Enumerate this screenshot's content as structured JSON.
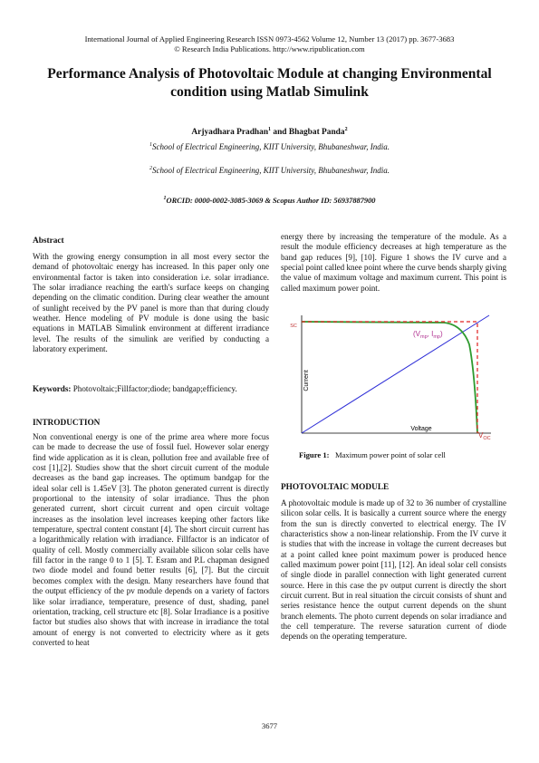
{
  "header": {
    "line1": "International Journal of Applied Engineering Research ISSN 0973-4562 Volume 12, Number 13 (2017) pp. 3677-3683",
    "line2": "© Research India Publications.  http://www.ripublication.com"
  },
  "title": "Performance Analysis of Photovoltaic Module at changing Environmental condition using Matlab Simulink",
  "authors": [
    {
      "name": "Arjyadhara Pradhan",
      "sup": "1"
    },
    {
      "joiner": " and "
    },
    {
      "name": "Bhagbat Panda",
      "sup": "2"
    }
  ],
  "affiliations": [
    {
      "sup": "1",
      "text": "School of Electrical Engineering, KIIT University, Bhubaneshwar, India."
    },
    {
      "sup": "2",
      "text": "School of Electrical Engineering, KIIT University, Bhubaneshwar, India."
    }
  ],
  "orcid": {
    "sup": "1",
    "text": "ORCID: 0000-0002-3085-3069 & Scopus Author ID: 56937887900"
  },
  "abstract": {
    "heading": "Abstract",
    "text": "With the growing energy consumption in all most every sector the demand of photovoltaic energy has increased. In this paper only one environmental factor is taken into consideration i.e. solar irradiance. The solar irradiance reaching the earth's surface keeps on changing depending on the climatic condition. During clear weather the amount of sunlight received by the PV panel is more than that during cloudy weather. Hence modeling of PV module is done using the basic equations in MATLAB Simulink environment at different irradiance level. The results of the simulink are verified by conducting a laboratory experiment."
  },
  "keywords": {
    "label": "Keywords:",
    "text": "Photovoltaic;Fillfactor;diode; bandgap;efficiency."
  },
  "introduction": {
    "heading": "INTRODUCTION",
    "text": "Non conventional energy is one of the prime area where more focus can be made to decrease the use of fossil fuel. However solar energy find wide application as it is clean, pollution free and available free of cost [1],[2]. Studies show that the short circuit current of the module decreases as the band gap increases. The optimum bandgap for the ideal solar cell is 1.45eV [3]. The photon generated current is directly proportional to the intensity of solar irradiance. Thus the phon generated current, short circuit current and open circuit voltage increases as the insolation level increases keeping other factors like temperature, spectral content constant [4]. The short circuit current has a logarithmically relation with irradiance. Fillfactor is an indicator of quality of cell. Mostly commercially available silicon solar cells have fill factor in the range 0 to 1 [5]. T. Esram and P.L chapman designed two diode model and found better results [6], [7]. But the circuit becomes complex with the design. Many researchers have found that the output efficiency of the pv module depends on a variety of factors like solar irradiance, temperature, presence of dust, shading, panel orientation, tracking, cell structure etc [8]. Solar Irradiance is a positive factor but studies also shows that with increase in irradiance the total amount of energy is not converted to electricity where as it gets converted to heat",
    "continuation": "energy there by increasing the temperature of the module. As a result the module efficiency decreases at high temperature as the band gap reduces [9], [10]. Figure 1 shows the IV curve and a special point called knee point where the curve bends sharply giving the value of maximum voltage and maximum current. This point is called maximum power point."
  },
  "figure": {
    "y_label": "Current",
    "x_label": "Voltage",
    "isc": {
      "main": "I",
      "sub": "SC"
    },
    "voc": {
      "main": "V",
      "sub": "OC"
    },
    "mpp": [
      "(V",
      "mp",
      ", I",
      "mp",
      ")"
    ],
    "caption_label": "Figure 1:",
    "caption": "Maximum power point of solar cell"
  },
  "pv_module": {
    "heading": "PHOTOVOLTAIC MODULE",
    "text": "A photovoltaic module is made up of 32 to 36 number of crystalline silicon solar cells. It is basically a current source where the energy from the sun is directly converted to electrical energy. The IV characteristics show a non-linear relationship. From the IV curve it is studies that with the increase in voltage the current decreases but at a point called knee point maximum power is produced hence called maximum power point [11], [12]. An ideal solar cell consists of single diode in parallel connection with light generated current source. Here in this case the pv output current is directly the short circuit current. But in real situation the circuit consists of shunt and series resistance hence the output current depends on the shunt branch elements. The photo current depends on solar irradiance and the cell temperature. The reverse saturation current of diode depends on the operating temperature."
  },
  "page_number": "3677"
}
